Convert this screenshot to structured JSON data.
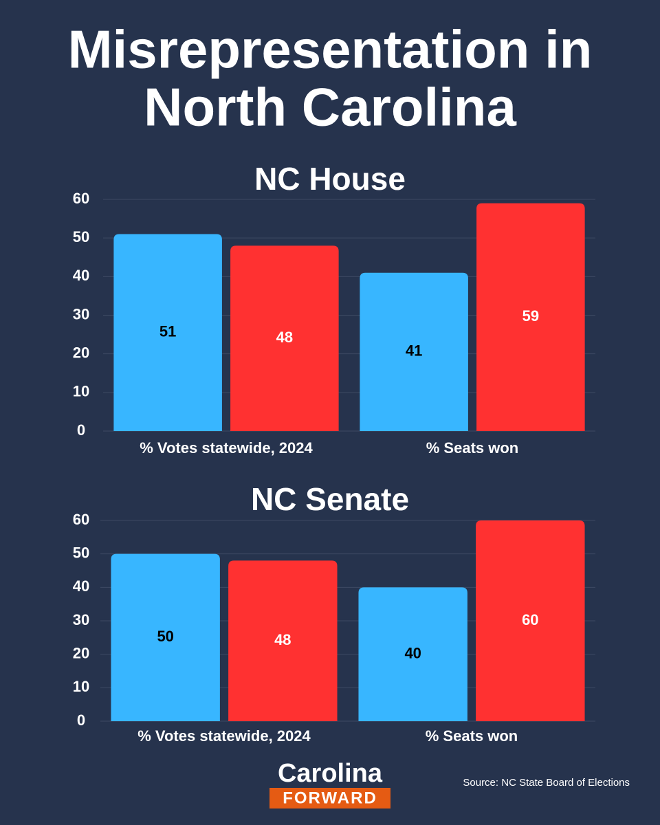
{
  "title": [
    "Misrepresentation in",
    "North Carolina"
  ],
  "chart_data": [
    {
      "type": "bar",
      "title": "NC House",
      "categories": [
        "% Votes statewide, 2024",
        "% Seats won"
      ],
      "series": [
        {
          "color": "#38b6ff",
          "values": [
            51,
            41
          ]
        },
        {
          "color": "#ff3131",
          "values": [
            48,
            59
          ]
        }
      ],
      "ylim": [
        0,
        60
      ],
      "yticks": [
        0,
        10,
        20,
        30,
        40,
        50,
        60
      ],
      "grid": true
    },
    {
      "type": "bar",
      "title": "NC Senate",
      "categories": [
        "% Votes statewide, 2024",
        "% Seats won"
      ],
      "series": [
        {
          "color": "#38b6ff",
          "values": [
            50,
            40
          ]
        },
        {
          "color": "#ff3131",
          "values": [
            48,
            60
          ]
        }
      ],
      "ylim": [
        0,
        60
      ],
      "yticks": [
        0,
        10,
        20,
        30,
        40,
        50,
        60
      ],
      "grid": true
    }
  ],
  "logo": {
    "top": "Carolina",
    "bottom": "FORWARD"
  },
  "source": "Source: NC State Board of Elections"
}
